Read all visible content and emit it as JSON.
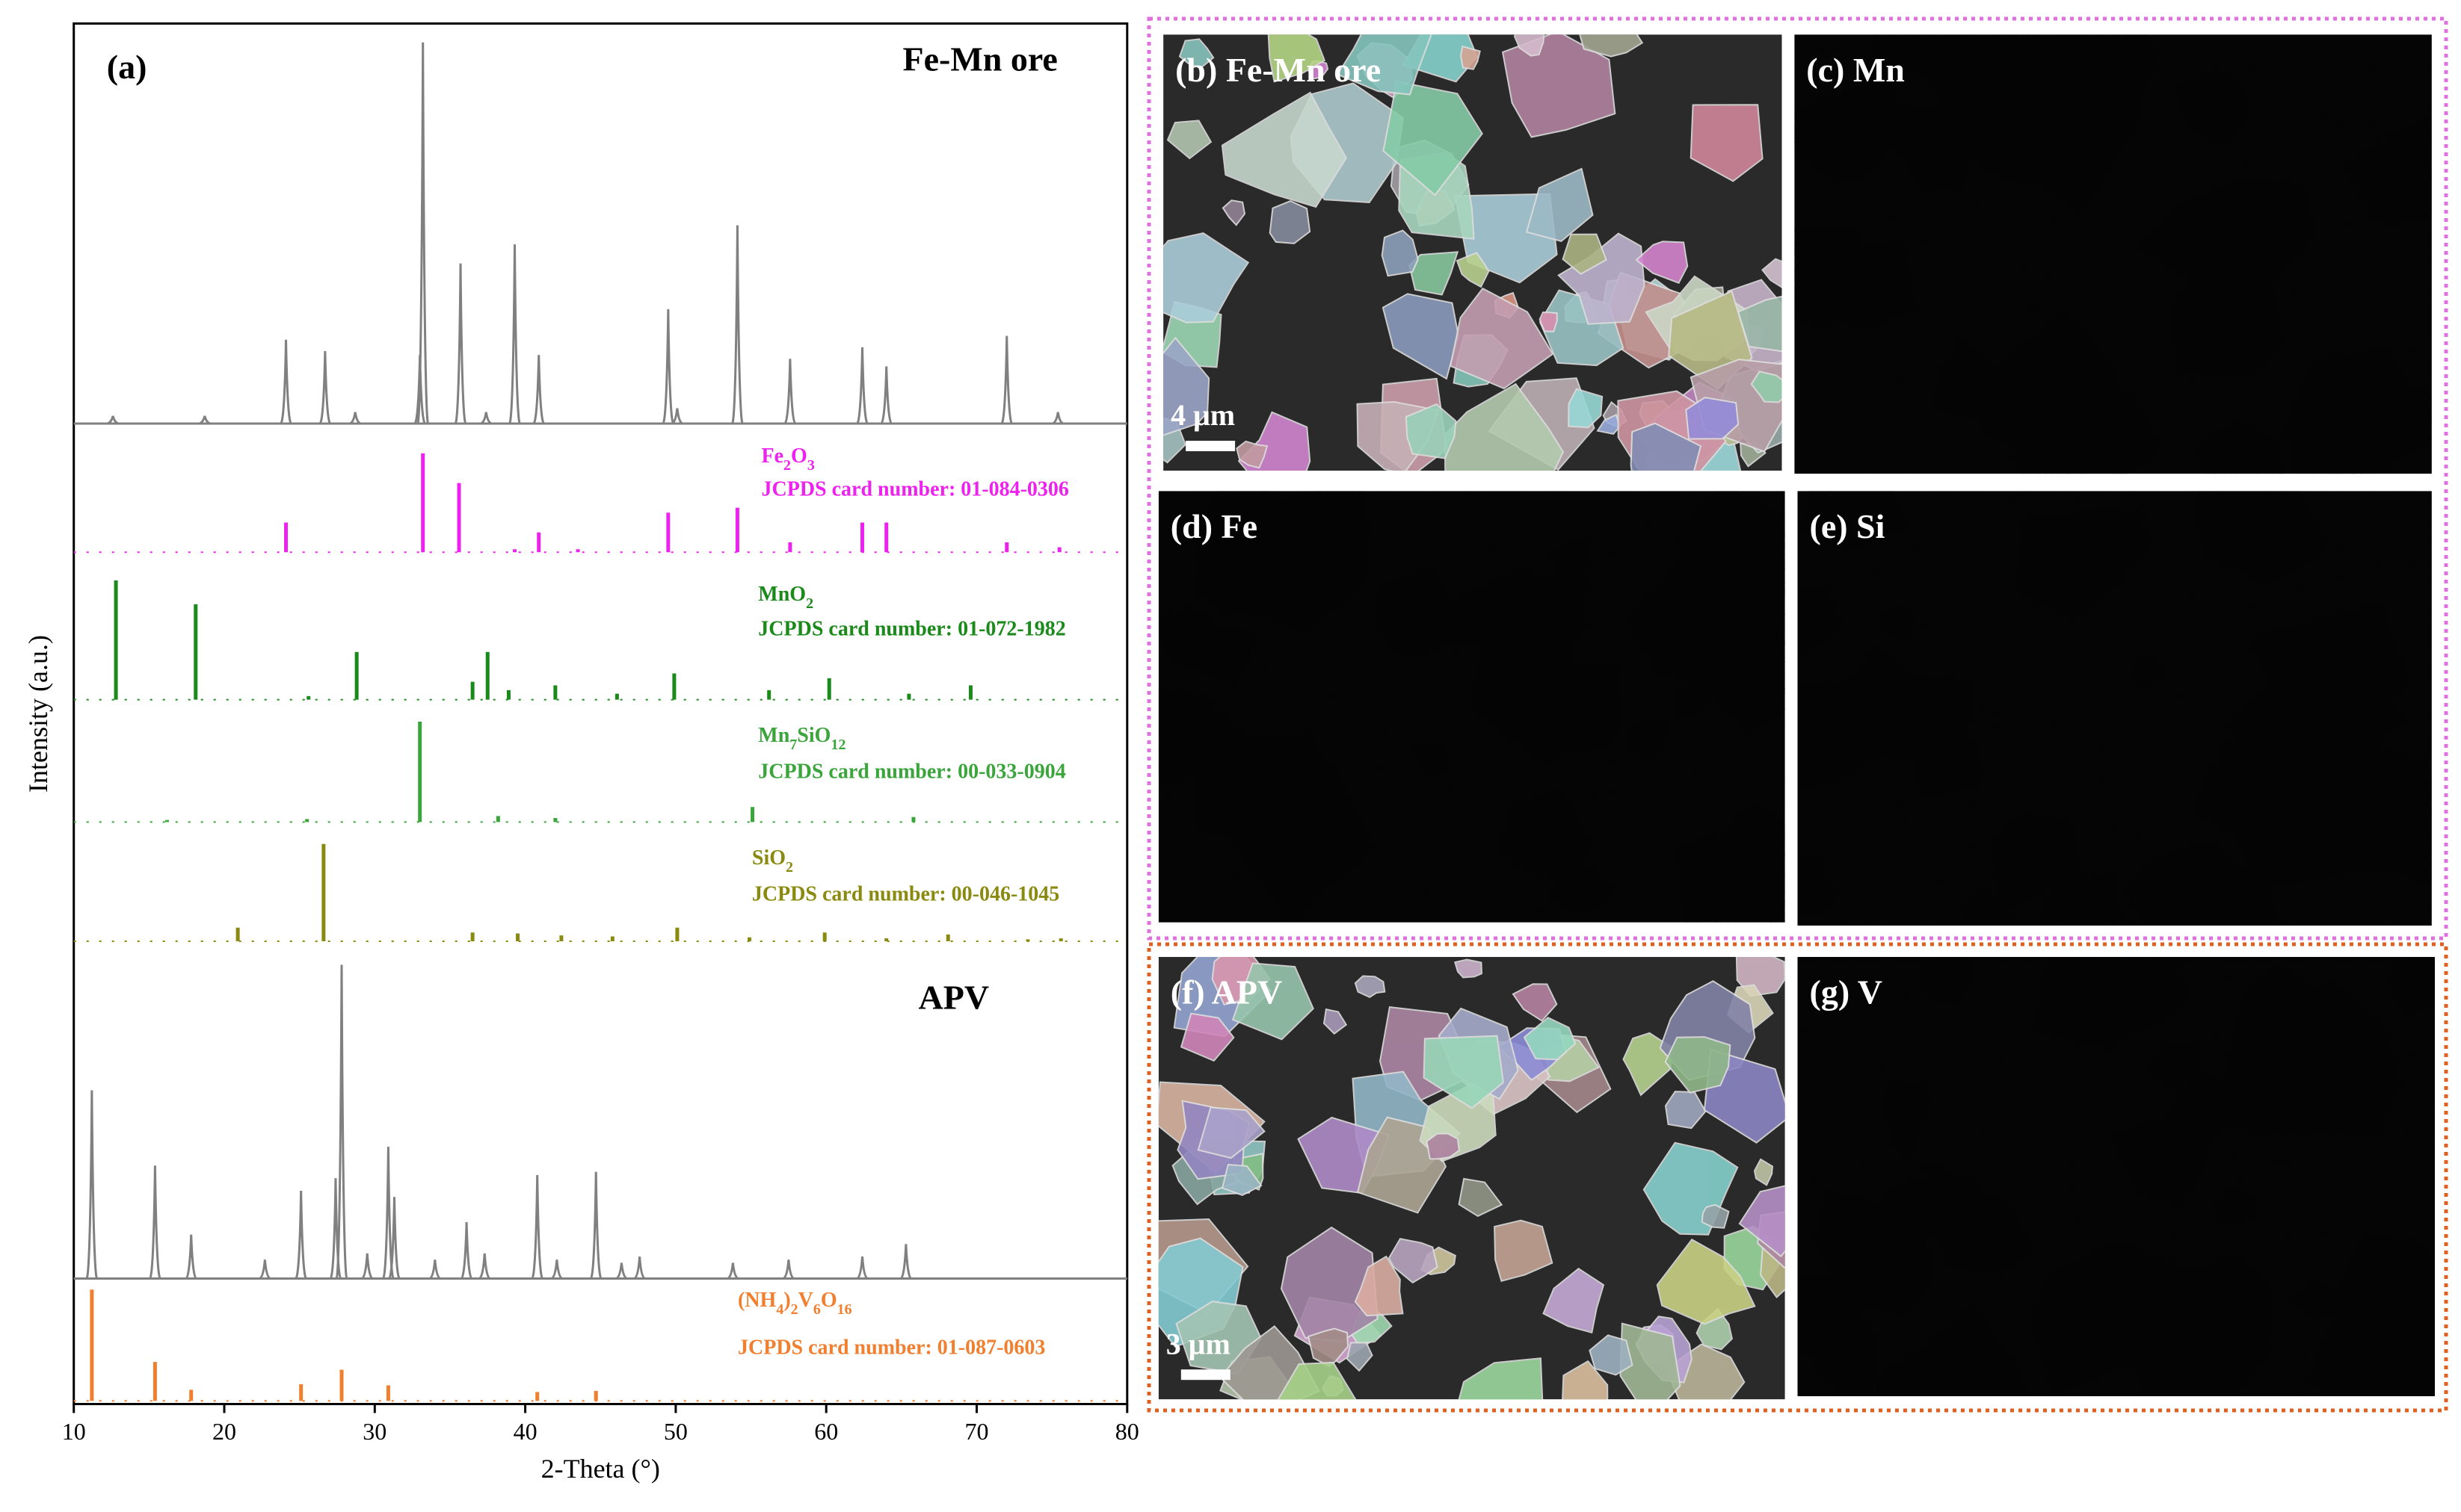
{
  "chart_data": {
    "type": "xrd",
    "label": "(a)",
    "xlabel": "2-Theta (°)",
    "ylabel": "Intensity (a.u.)",
    "xlim": [
      10,
      80
    ],
    "xticks": [
      10,
      20,
      30,
      40,
      50,
      60,
      70,
      80
    ],
    "patterns": [
      {
        "name": "Fe-Mn ore",
        "kind": "curve",
        "color": "#808080",
        "x": [
          12.6,
          18.7,
          24.1,
          26.7,
          28.7,
          33.0,
          33.2,
          35.7,
          37.4,
          39.3,
          40.9,
          49.5,
          50.1,
          54.1,
          57.6,
          62.4,
          64.0,
          72.0,
          75.4
        ],
        "values": [
          2,
          2,
          22,
          19,
          3,
          18,
          100,
          42,
          3,
          47,
          18,
          30,
          4,
          52,
          17,
          20,
          15,
          23,
          3
        ]
      },
      {
        "name": "Fe2O3",
        "card": "JCPDS card number: 01-084-0306",
        "kind": "stick",
        "color": "#ee22ee",
        "x": [
          24.1,
          33.2,
          35.6,
          39.3,
          40.9,
          43.5,
          49.5,
          54.1,
          57.6,
          62.4,
          64.0,
          72.0,
          75.5
        ],
        "values": [
          30,
          100,
          70,
          3,
          20,
          3,
          40,
          45,
          10,
          30,
          30,
          10,
          5
        ]
      },
      {
        "name": "MnO2",
        "card": "JCPDS card number: 01-072-1982",
        "kind": "stick",
        "color": "#1a8a1a",
        "x": [
          12.8,
          18.1,
          25.6,
          28.8,
          36.5,
          37.5,
          38.9,
          42.0,
          46.1,
          49.9,
          56.2,
          60.2,
          65.5,
          69.6
        ],
        "values": [
          100,
          80,
          3,
          40,
          15,
          40,
          8,
          12,
          5,
          22,
          8,
          18,
          5,
          12
        ]
      },
      {
        "name": "Mn7SiO12",
        "card": "JCPDS card number: 00-033-0904",
        "kind": "stick",
        "color": "#3aa53a",
        "x": [
          16.2,
          25.5,
          33.0,
          38.2,
          42.0,
          55.1,
          65.8
        ],
        "values": [
          2,
          3,
          100,
          6,
          4,
          15,
          5
        ]
      },
      {
        "name": "SiO2",
        "card": "JCPDS card number: 00-046-1045",
        "kind": "stick",
        "color": "#8a8a10",
        "x": [
          20.9,
          26.6,
          36.5,
          39.5,
          42.4,
          45.8,
          50.1,
          54.9,
          59.9,
          64.0,
          68.1,
          73.4,
          75.6
        ],
        "values": [
          14,
          100,
          9,
          8,
          6,
          5,
          14,
          4,
          9,
          3,
          7,
          2,
          3
        ]
      },
      {
        "name": "APV",
        "kind": "curve",
        "color": "#808080",
        "x": [
          11.2,
          15.4,
          17.8,
          22.7,
          25.1,
          27.4,
          27.8,
          29.5,
          30.9,
          31.3,
          34.0,
          36.1,
          37.3,
          40.8,
          42.1,
          44.7,
          46.4,
          47.6,
          53.8,
          57.5,
          62.4,
          65.3
        ],
        "values": [
          60,
          36,
          14,
          6,
          28,
          32,
          100,
          8,
          42,
          26,
          6,
          18,
          8,
          33,
          6,
          34,
          5,
          7,
          5,
          6,
          7,
          11
        ]
      },
      {
        "name": "(NH4)2V6O16",
        "card": "JCPDS card number: 01-087-0603",
        "kind": "stick",
        "color": "#f08030",
        "x": [
          11.2,
          15.4,
          17.8,
          25.1,
          27.8,
          30.9,
          40.8,
          44.7
        ],
        "values": [
          100,
          35,
          10,
          15,
          28,
          14,
          8,
          9
        ]
      }
    ]
  },
  "images": [
    {
      "label": "(b) Fe-Mn ore",
      "kind": "sem",
      "color": "#b8b8b8",
      "scalebar": "4 μm"
    },
    {
      "label": "(c) Mn",
      "kind": "map",
      "color": "#22dd22"
    },
    {
      "label": "(d) Fe",
      "kind": "map",
      "color": "#dd22dd"
    },
    {
      "label": "(e) Si",
      "kind": "map",
      "color": "#dddd22"
    },
    {
      "label": "(f) APV",
      "kind": "sem",
      "color": "#a8a8a8",
      "scalebar": "3 μm"
    },
    {
      "label": "(g) V",
      "kind": "map",
      "color": "#e07818"
    }
  ]
}
